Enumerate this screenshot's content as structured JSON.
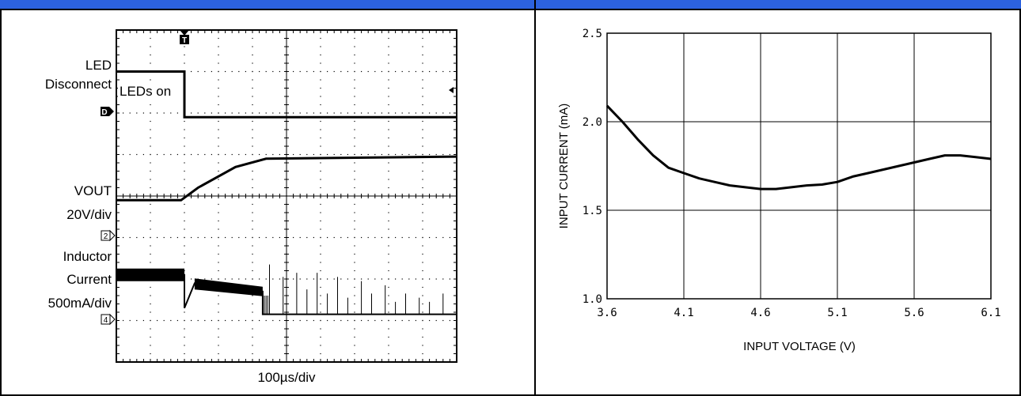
{
  "colors": {
    "header_blue": "#2c62df",
    "border": "#000000",
    "trace": "#000000",
    "scope_grid": "#000000",
    "plot_grid": "#000000"
  },
  "left_panel": {
    "chart_data": {
      "type": "line",
      "title": "",
      "xlabel": "100µs/div",
      "ylabel": "",
      "x_divisions": 10,
      "y_divisions": 8,
      "grid": true,
      "labels": {
        "led_disconnect_1": "LED",
        "led_disconnect_2": "Disconnect",
        "leds_on": "LEDs on",
        "vout_1": "VOUT",
        "vout_2": "20V/div",
        "inductor_1": "Inductor",
        "inductor_2": "Current",
        "inductor_3": "500mA/div"
      },
      "markers": {
        "trigger": "T",
        "ch_d": "D",
        "ch_2": "2",
        "ch_4": "4"
      },
      "series": [
        {
          "name": "LED Disconnect",
          "points": [
            [
              0,
              7.0
            ],
            [
              2.0,
              7.0
            ],
            [
              2.0,
              5.9
            ],
            [
              10,
              5.9
            ]
          ]
        },
        {
          "name": "VOUT",
          "points": [
            [
              0,
              3.9
            ],
            [
              1.9,
              3.9
            ],
            [
              2.4,
              4.2
            ],
            [
              3.5,
              4.7
            ],
            [
              4.4,
              4.9
            ],
            [
              10,
              4.95
            ]
          ]
        },
        {
          "name": "Inductor Current",
          "points": [
            [
              0,
              2.1
            ],
            [
              2.0,
              2.1
            ],
            [
              2.0,
              1.3
            ],
            [
              2.3,
              1.9
            ],
            [
              4.3,
              1.7
            ],
            [
              4.3,
              1.15
            ],
            [
              10,
              1.15
            ]
          ]
        }
      ]
    }
  },
  "right_panel": {
    "chart_data": {
      "type": "line",
      "title": "",
      "xlabel": "INPUT VOLTAGE (V)",
      "ylabel": "INPUT CURRENT (mA)",
      "xlim": [
        3.6,
        6.1
      ],
      "ylim": [
        1.0,
        2.5
      ],
      "x_ticks": [
        "3.6",
        "4.1",
        "4.6",
        "5.1",
        "5.6",
        "6.1"
      ],
      "y_ticks": [
        "1.0",
        "1.5",
        "2.0",
        "2.5"
      ],
      "grid": true,
      "series": [
        {
          "x": [
            3.6,
            3.7,
            3.8,
            3.9,
            4.0,
            4.1,
            4.2,
            4.3,
            4.4,
            4.5,
            4.6,
            4.7,
            4.8,
            4.9,
            5.0,
            5.1,
            5.2,
            5.3,
            5.4,
            5.5,
            5.6,
            5.7,
            5.8,
            5.9,
            6.0,
            6.1
          ],
          "y": [
            2.09,
            2.0,
            1.9,
            1.81,
            1.74,
            1.71,
            1.68,
            1.66,
            1.64,
            1.63,
            1.62,
            1.62,
            1.63,
            1.64,
            1.645,
            1.66,
            1.69,
            1.71,
            1.73,
            1.75,
            1.77,
            1.79,
            1.81,
            1.81,
            1.8,
            1.79
          ]
        }
      ]
    }
  }
}
